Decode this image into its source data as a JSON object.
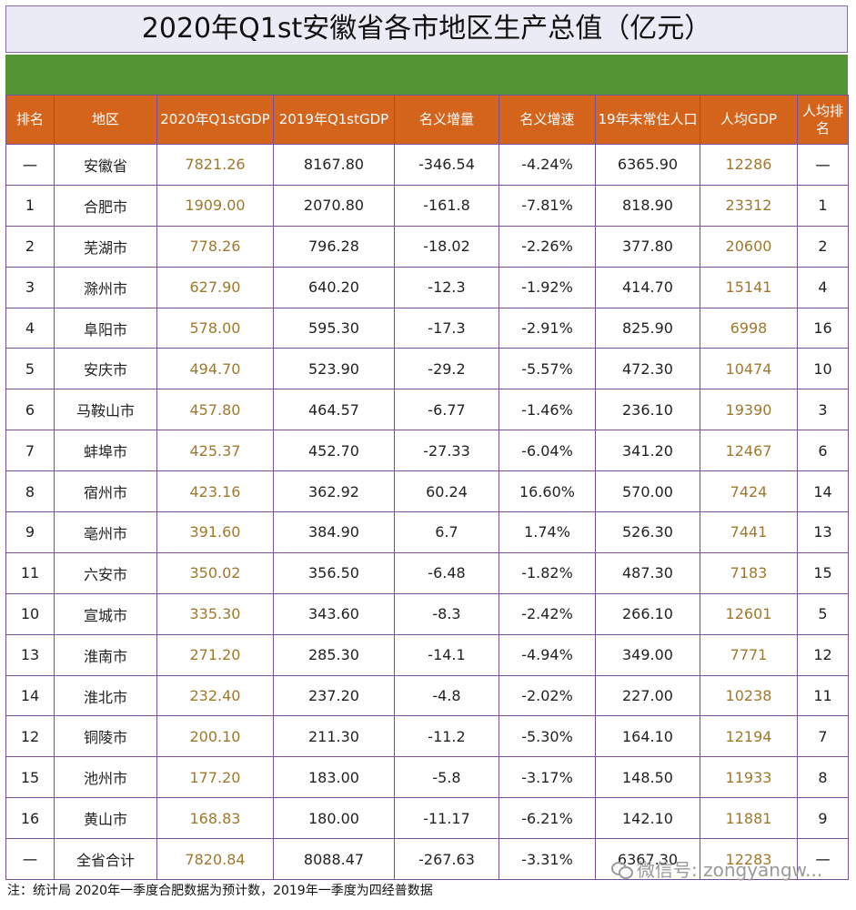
{
  "title": "2020年Q1st安徽省各市地区生产总值（亿元）",
  "headers": [
    "排名",
    "地区",
    "2020年Q1stGDP",
    "2019年Q1stGDP",
    "名义增量",
    "名义增速",
    "19年末常住人口",
    "人均GDP",
    "人均排名"
  ],
  "rows": [
    [
      "一",
      "安徽省",
      "7821.26",
      "8167.80",
      "-346.54",
      "-4.24%",
      "6365.90",
      "12286",
      "一"
    ],
    [
      "1",
      "合肥市",
      "1909.00",
      "2070.80",
      "-161.8",
      "-7.81%",
      "818.90",
      "23312",
      "1"
    ],
    [
      "2",
      "芜湖市",
      "778.26",
      "796.28",
      "-18.02",
      "-2.26%",
      "377.80",
      "20600",
      "2"
    ],
    [
      "3",
      "滁州市",
      "627.90",
      "640.20",
      "-12.3",
      "-1.92%",
      "414.70",
      "15141",
      "4"
    ],
    [
      "4",
      "阜阳市",
      "578.00",
      "595.30",
      "-17.3",
      "-2.91%",
      "825.90",
      "6998",
      "16"
    ],
    [
      "5",
      "安庆市",
      "494.70",
      "523.90",
      "-29.2",
      "-5.57%",
      "472.30",
      "10474",
      "10"
    ],
    [
      "6",
      "马鞍山市",
      "457.80",
      "464.57",
      "-6.77",
      "-1.46%",
      "236.10",
      "19390",
      "3"
    ],
    [
      "7",
      "蚌埠市",
      "425.37",
      "452.70",
      "-27.33",
      "-6.04%",
      "341.20",
      "12467",
      "6"
    ],
    [
      "8",
      "宿州市",
      "423.16",
      "362.92",
      "60.24",
      "16.60%",
      "570.00",
      "7424",
      "14"
    ],
    [
      "9",
      "亳州市",
      "391.60",
      "384.90",
      "6.7",
      "1.74%",
      "526.30",
      "7441",
      "13"
    ],
    [
      "11",
      "六安市",
      "350.02",
      "356.50",
      "-6.48",
      "-1.82%",
      "487.30",
      "7183",
      "15"
    ],
    [
      "10",
      "宣城市",
      "335.30",
      "343.60",
      "-8.3",
      "-2.42%",
      "266.10",
      "12601",
      "5"
    ],
    [
      "13",
      "淮南市",
      "271.20",
      "285.30",
      "-14.1",
      "-4.94%",
      "349.00",
      "7771",
      "12"
    ],
    [
      "14",
      "淮北市",
      "232.40",
      "237.20",
      "-4.8",
      "-2.02%",
      "227.00",
      "10238",
      "11"
    ],
    [
      "12",
      "铜陵市",
      "200.10",
      "211.30",
      "-11.2",
      "-5.30%",
      "164.10",
      "12194",
      "7"
    ],
    [
      "15",
      "池州市",
      "177.20",
      "183.00",
      "-5.8",
      "-3.17%",
      "148.50",
      "11933",
      "8"
    ],
    [
      "16",
      "黄山市",
      "168.83",
      "180.00",
      "-11.17",
      "-6.21%",
      "142.10",
      "11881",
      "9"
    ],
    [
      "一",
      "全省合计",
      "7820.84",
      "8088.47",
      "-267.63",
      "-3.31%",
      "6367.30",
      "12283",
      "一"
    ]
  ],
  "footnote": "注：统计局     2020年一季度合肥数据为预计数，2019年一季度为四经普数据",
  "watermark": "微信号: zongyangw..."
}
